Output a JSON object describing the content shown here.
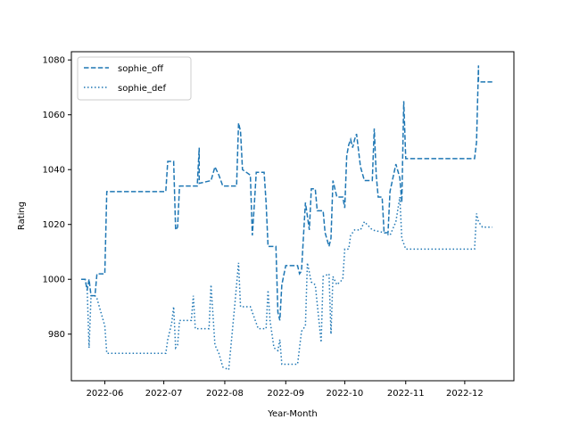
{
  "chart_data": {
    "type": "line",
    "title": "",
    "xlabel": "Year-Month",
    "ylabel": "Rating",
    "xlim": [
      "2022-05-15",
      "2022-12-26"
    ],
    "ylim": [
      963,
      1083
    ],
    "grid": false,
    "legend_position": "top-left",
    "x_ticks": [
      "2022-06",
      "2022-07",
      "2022-08",
      "2022-09",
      "2022-10",
      "2022-11",
      "2022-12"
    ],
    "y_ticks": [
      980,
      1000,
      1020,
      1040,
      1060,
      1080
    ],
    "series": [
      {
        "name": "sophie_off",
        "style": "dashed",
        "color": "#1f77b4",
        "points": [
          [
            "2022-05-20",
            1000
          ],
          [
            "2022-05-22",
            1000
          ],
          [
            "2022-05-23",
            996
          ],
          [
            "2022-05-24",
            1000
          ],
          [
            "2022-05-25",
            994
          ],
          [
            "2022-05-27",
            994
          ],
          [
            "2022-05-28",
            1002
          ],
          [
            "2022-06-01",
            1002
          ],
          [
            "2022-06-02",
            1032
          ],
          [
            "2022-07-02",
            1032
          ],
          [
            "2022-07-03",
            1043
          ],
          [
            "2022-07-06",
            1043
          ],
          [
            "2022-07-07",
            1018
          ],
          [
            "2022-07-08",
            1019
          ],
          [
            "2022-07-09",
            1034
          ],
          [
            "2022-07-18",
            1034
          ],
          [
            "2022-07-19",
            1048
          ],
          [
            "2022-07-19",
            1035
          ],
          [
            "2022-07-25",
            1036
          ],
          [
            "2022-07-27",
            1041
          ],
          [
            "2022-07-29",
            1038
          ],
          [
            "2022-07-31",
            1034
          ],
          [
            "2022-08-07",
            1034
          ],
          [
            "2022-08-08",
            1057
          ],
          [
            "2022-08-09",
            1054
          ],
          [
            "2022-08-10",
            1040
          ],
          [
            "2022-08-14",
            1038
          ],
          [
            "2022-08-15",
            1016
          ],
          [
            "2022-08-16",
            1027
          ],
          [
            "2022-08-17",
            1039
          ],
          [
            "2022-08-21",
            1039
          ],
          [
            "2022-08-22",
            1028
          ],
          [
            "2022-08-23",
            1012
          ],
          [
            "2022-08-27",
            1012
          ],
          [
            "2022-08-28",
            988
          ],
          [
            "2022-08-29",
            985
          ],
          [
            "2022-08-30",
            998
          ],
          [
            "2022-09-01",
            1005
          ],
          [
            "2022-09-07",
            1005
          ],
          [
            "2022-09-08",
            1002
          ],
          [
            "2022-09-09",
            1003
          ],
          [
            "2022-09-11",
            1028
          ],
          [
            "2022-09-13",
            1018
          ],
          [
            "2022-09-14",
            1033
          ],
          [
            "2022-09-16",
            1033
          ],
          [
            "2022-09-17",
            1025
          ],
          [
            "2022-09-20",
            1025
          ],
          [
            "2022-09-21",
            1017
          ],
          [
            "2022-09-23",
            1012
          ],
          [
            "2022-09-24",
            1015
          ],
          [
            "2022-09-25",
            1036
          ],
          [
            "2022-09-27",
            1030
          ],
          [
            "2022-09-30",
            1030
          ],
          [
            "2022-10-01",
            1026
          ],
          [
            "2022-10-02",
            1045
          ],
          [
            "2022-10-03",
            1049
          ],
          [
            "2022-10-04",
            1051
          ],
          [
            "2022-10-05",
            1048
          ],
          [
            "2022-10-06",
            1051
          ],
          [
            "2022-10-07",
            1053
          ],
          [
            "2022-10-09",
            1041
          ],
          [
            "2022-10-11",
            1036
          ],
          [
            "2022-10-15",
            1036
          ],
          [
            "2022-10-16",
            1055
          ],
          [
            "2022-10-17",
            1038
          ],
          [
            "2022-10-18",
            1030
          ],
          [
            "2022-10-20",
            1030
          ],
          [
            "2022-10-21",
            1017
          ],
          [
            "2022-10-23",
            1017
          ],
          [
            "2022-10-24",
            1032
          ],
          [
            "2022-10-27",
            1042
          ],
          [
            "2022-10-29",
            1037
          ],
          [
            "2022-10-30",
            1028
          ],
          [
            "2022-10-31",
            1065
          ],
          [
            "2022-11-01",
            1044
          ],
          [
            "2022-12-06",
            1044
          ],
          [
            "2022-12-07",
            1050
          ],
          [
            "2022-12-08",
            1078
          ],
          [
            "2022-12-08",
            1072
          ],
          [
            "2022-12-15",
            1072
          ]
        ]
      },
      {
        "name": "sophie_def",
        "style": "dotted",
        "color": "#1f77b4",
        "points": [
          [
            "2022-05-20",
            1000
          ],
          [
            "2022-05-22",
            1000
          ],
          [
            "2022-05-23",
            997
          ],
          [
            "2022-05-24",
            975
          ],
          [
            "2022-05-25",
            994
          ],
          [
            "2022-05-27",
            994
          ],
          [
            "2022-05-28",
            993
          ],
          [
            "2022-05-30",
            988
          ],
          [
            "2022-06-01",
            983
          ],
          [
            "2022-06-02",
            973
          ],
          [
            "2022-07-02",
            973
          ],
          [
            "2022-07-03",
            978
          ],
          [
            "2022-07-05",
            984
          ],
          [
            "2022-07-06",
            990
          ],
          [
            "2022-07-07",
            975
          ],
          [
            "2022-07-08",
            976
          ],
          [
            "2022-07-09",
            985
          ],
          [
            "2022-07-15",
            985
          ],
          [
            "2022-07-16",
            994
          ],
          [
            "2022-07-17",
            982
          ],
          [
            "2022-07-24",
            982
          ],
          [
            "2022-07-25",
            998
          ],
          [
            "2022-07-27",
            976
          ],
          [
            "2022-07-29",
            973
          ],
          [
            "2022-07-31",
            968
          ],
          [
            "2022-08-03",
            967
          ],
          [
            "2022-08-06",
            990
          ],
          [
            "2022-08-08",
            1006
          ],
          [
            "2022-08-09",
            990
          ],
          [
            "2022-08-14",
            990
          ],
          [
            "2022-08-15",
            988
          ],
          [
            "2022-08-18",
            982
          ],
          [
            "2022-08-22",
            982
          ],
          [
            "2022-08-23",
            996
          ],
          [
            "2022-08-24",
            985
          ],
          [
            "2022-08-26",
            975
          ],
          [
            "2022-08-28",
            974
          ],
          [
            "2022-08-29",
            978
          ],
          [
            "2022-08-30",
            969
          ],
          [
            "2022-09-07",
            969
          ],
          [
            "2022-09-08",
            975
          ],
          [
            "2022-09-09",
            981
          ],
          [
            "2022-09-11",
            983
          ],
          [
            "2022-09-12",
            1006
          ],
          [
            "2022-09-14",
            999
          ],
          [
            "2022-09-16",
            998
          ],
          [
            "2022-09-18",
            984
          ],
          [
            "2022-09-19",
            977
          ],
          [
            "2022-09-20",
            1001
          ],
          [
            "2022-09-23",
            1002
          ],
          [
            "2022-09-24",
            980
          ],
          [
            "2022-09-25",
            1001
          ],
          [
            "2022-09-27",
            998
          ],
          [
            "2022-09-30",
            1000
          ],
          [
            "2022-10-01",
            1011
          ],
          [
            "2022-10-03",
            1011
          ],
          [
            "2022-10-04",
            1016
          ],
          [
            "2022-10-06",
            1018
          ],
          [
            "2022-10-09",
            1018
          ],
          [
            "2022-10-11",
            1021
          ],
          [
            "2022-10-15",
            1018
          ],
          [
            "2022-10-21",
            1017
          ],
          [
            "2022-10-24",
            1016
          ],
          [
            "2022-10-27",
            1021
          ],
          [
            "2022-10-29",
            1030
          ],
          [
            "2022-10-30",
            1015
          ],
          [
            "2022-11-01",
            1011
          ],
          [
            "2022-12-06",
            1011
          ],
          [
            "2022-12-07",
            1024
          ],
          [
            "2022-12-08",
            1021
          ],
          [
            "2022-12-10",
            1019
          ],
          [
            "2022-12-15",
            1019
          ]
        ]
      }
    ]
  }
}
